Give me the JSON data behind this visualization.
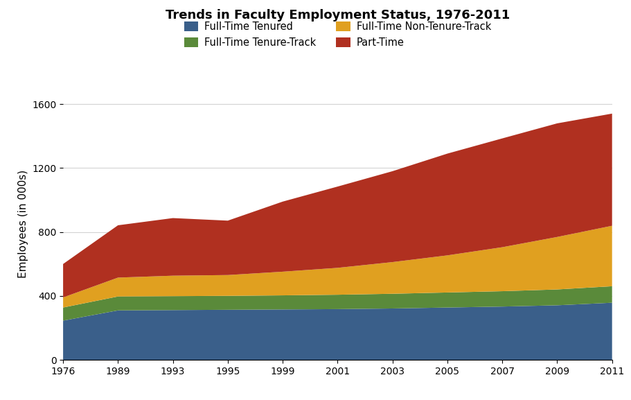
{
  "title": "Trends in Faculty Employment Status, 1976-2011",
  "ylabel": "Employees (in 000s)",
  "years": [
    1976,
    1989,
    1993,
    1995,
    1999,
    2001,
    2003,
    2005,
    2007,
    2009,
    2011
  ],
  "full_time_tenured": [
    246,
    310,
    312,
    314,
    316,
    318,
    322,
    328,
    334,
    342,
    358
  ],
  "full_time_tenure_track": [
    82,
    87,
    87,
    87,
    88,
    90,
    92,
    94,
    96,
    99,
    103
  ],
  "full_time_non_tenure": [
    63,
    118,
    128,
    130,
    148,
    168,
    198,
    232,
    275,
    328,
    378
  ],
  "part_time": [
    209,
    327,
    360,
    340,
    438,
    508,
    568,
    636,
    680,
    710,
    701
  ],
  "colors": {
    "full_time_tenured": "#3a5f8a",
    "full_time_tenure_track": "#5a8a3a",
    "full_time_non_tenure": "#e0a020",
    "part_time": "#b03020"
  },
  "legend_col1": [
    "Full-Time Tenured",
    "Full-Time Non-Tenure-Track"
  ],
  "legend_col2": [
    "Full-Time Tenure-Track",
    "Part-Time"
  ],
  "legend_colors_col1": [
    "#3a5f8a",
    "#e0a020"
  ],
  "legend_colors_col2": [
    "#5a8a3a",
    "#b03020"
  ],
  "ylim": [
    0,
    1700
  ],
  "yticks": [
    0,
    400,
    800,
    1200,
    1600
  ],
  "figsize": [
    9.11,
    5.77
  ],
  "dpi": 100
}
